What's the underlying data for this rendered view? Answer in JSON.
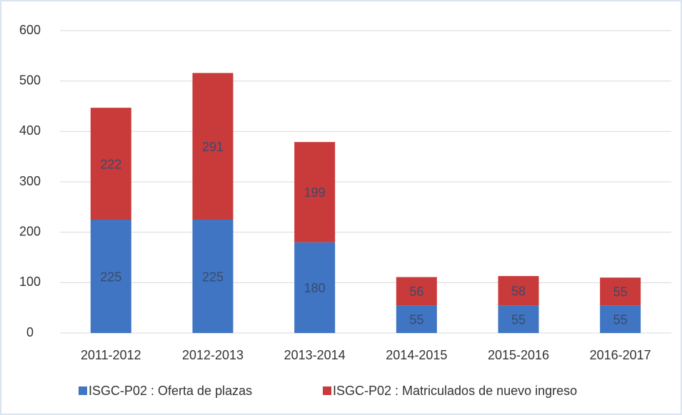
{
  "chart_data": {
    "type": "stacked_bar",
    "categories": [
      "2011-2012",
      "2012-2013",
      "2013-2014",
      "2014-2015",
      "2015-2016",
      "2016-2017"
    ],
    "series": [
      {
        "name": "ISGC-P02 : Oferta de plazas",
        "color": "#3f75c2",
        "values": [
          225,
          225,
          180,
          55,
          55,
          55
        ]
      },
      {
        "name": "ISGC-P02 : Matriculados de nuevo ingreso",
        "color": "#c93a3a",
        "values": [
          222,
          291,
          199,
          56,
          58,
          55
        ]
      }
    ],
    "ylim": [
      0,
      600
    ],
    "yticks": [
      0,
      100,
      200,
      300,
      400,
      500,
      600
    ],
    "grid": true
  }
}
